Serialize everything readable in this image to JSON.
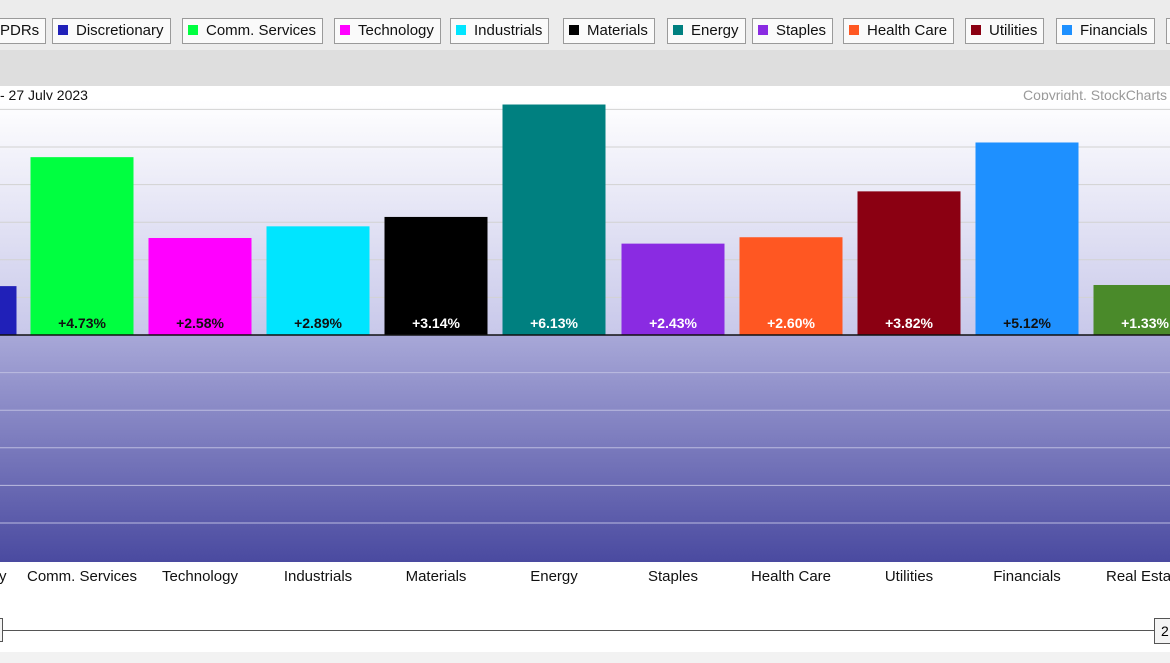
{
  "legend": {
    "items": [
      {
        "label": "PDRs",
        "color": ""
      },
      {
        "label": "Discretionary",
        "color": "#2020b8"
      },
      {
        "label": "Comm. Services",
        "color": "#00ff40"
      },
      {
        "label": "Technology",
        "color": "#ff00ff"
      },
      {
        "label": "Industrials",
        "color": "#00e5ff"
      },
      {
        "label": "Materials",
        "color": "#000000"
      },
      {
        "label": "Energy",
        "color": "#008080"
      },
      {
        "label": "Staples",
        "color": "#8a2be2"
      },
      {
        "label": "Health Care",
        "color": "#ff5722"
      },
      {
        "label": "Utilities",
        "color": "#8b0012"
      },
      {
        "label": "Financials",
        "color": "#1e90ff"
      }
    ]
  },
  "header": {
    "title": "- 27 July 2023",
    "copyright": "Copyright, StockCharts"
  },
  "slider": {
    "right_label": "2"
  },
  "chart_data": {
    "type": "bar",
    "categories": [
      "ry",
      "Comm. Services",
      "Technology",
      "Industrials",
      "Materials",
      "Energy",
      "Staples",
      "Health Care",
      "Utilities",
      "Financials",
      "Real Esta"
    ],
    "values": [
      1.3,
      4.73,
      2.58,
      2.89,
      3.14,
      6.13,
      2.43,
      2.6,
      3.82,
      5.12,
      1.33
    ],
    "data_labels": [
      "",
      "+4.73%",
      "+2.58%",
      "+2.89%",
      "+3.14%",
      "+6.13%",
      "+2.43%",
      "+2.60%",
      "+3.82%",
      "+5.12%",
      "+1.33%"
    ],
    "colors": [
      "#2020b8",
      "#00ff40",
      "#ff00ff",
      "#00e5ff",
      "#000000",
      "#008080",
      "#8a2be2",
      "#ff5722",
      "#8b0012",
      "#1e90ff",
      "#4a8a2a"
    ],
    "label_colors": [
      "#ffffff",
      "#111111",
      "#111111",
      "#111111",
      "#ffffff",
      "#ffffff",
      "#ffffff",
      "#ffffff",
      "#ffffff",
      "#111111",
      "#ffffff"
    ],
    "ylim": [
      -6,
      6.5
    ],
    "grid": true,
    "title": "- 27 July 2023"
  }
}
